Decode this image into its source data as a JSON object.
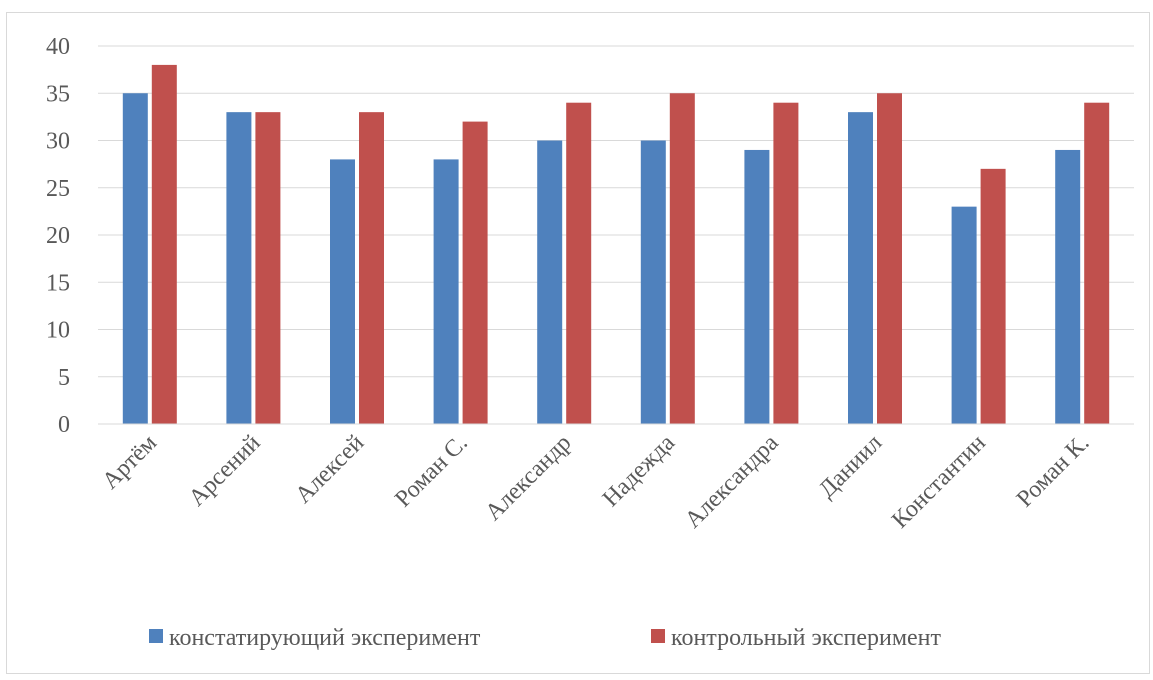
{
  "chart_data": {
    "type": "bar",
    "title": "",
    "xlabel": "",
    "ylabel": "",
    "categories": [
      "Артём",
      "Арсений",
      "Алексей",
      "Роман С.",
      "Александр",
      "Надежда",
      "Александра",
      "Даниил",
      "Константин",
      "Роман К."
    ],
    "series": [
      {
        "name": "констатирующий эксперимент",
        "color": "#4f81bd",
        "values": [
          35,
          33,
          28,
          28,
          30,
          30,
          29,
          33,
          23,
          29
        ]
      },
      {
        "name": "контрольный эксперимент",
        "color": "#c0504d",
        "values": [
          38,
          33,
          33,
          32,
          34,
          35,
          34,
          35,
          27,
          34
        ]
      }
    ],
    "ylim": [
      0,
      40
    ],
    "yticks": [
      0,
      5,
      10,
      15,
      20,
      25,
      30,
      35,
      40
    ],
    "grid": true,
    "legend_position": "bottom"
  }
}
